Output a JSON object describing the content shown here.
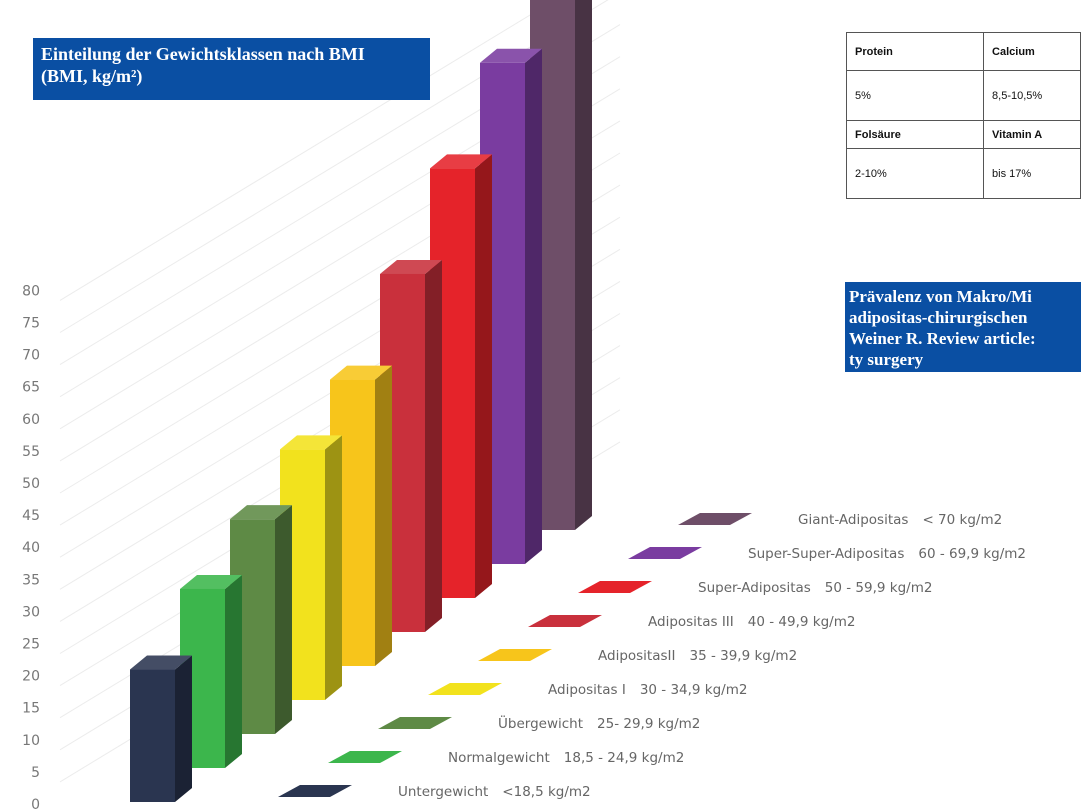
{
  "title": {
    "line1": "Einteilung der Gewichtsklassen nach BMI",
    "line2": "(BMI, kg/m²)"
  },
  "chart_data": {
    "type": "bar",
    "categories": [
      "Untergewicht",
      "Normalgewicht",
      "Übergewicht",
      "Adipositas I",
      "AdipositasII",
      "Adipositas III",
      "Super-Adipositas",
      "Super-Super-Adipositas",
      "Giant-Adipositas"
    ],
    "ranges": [
      "<18,5 kg/m2",
      "18,5 - 24,9 kg/m2",
      "25- 29,9 kg/m2",
      "30 - 34,9 kg/m2",
      "35 - 39,9 kg/m2",
      "40 - 49,9 kg/m2",
      "50 - 59,9 kg/m2",
      "60 - 69,9 kg/m2",
      "< 70 kg/m2"
    ],
    "values": [
      18.5,
      25,
      30,
      35,
      40,
      50,
      60,
      70,
      80
    ],
    "colors": [
      "#2a3550",
      "#3cb64c",
      "#5e8a45",
      "#f2e21d",
      "#f7c51b",
      "#c9303c",
      "#e5232a",
      "#7a3ca0",
      "#6e4e68"
    ],
    "ylim": [
      0,
      80
    ],
    "yticks": [
      0,
      5,
      10,
      15,
      20,
      25,
      30,
      35,
      40,
      45,
      50,
      55,
      60,
      65,
      70,
      75,
      80
    ],
    "grid": true
  },
  "table": {
    "rows": [
      [
        "Protein",
        "Calcium"
      ],
      [
        "5%",
        "8,5-10,5%"
      ],
      [
        "Folsäure",
        "Vitamin A"
      ],
      [
        "2-10%",
        "bis 17%"
      ]
    ]
  },
  "caption": {
    "line1": "Prävalenz von Makro/Mi",
    "line2": "adipositas-chirurgischen",
    "line3": "Weiner R. Review article:",
    "line4": "ty surgery"
  }
}
